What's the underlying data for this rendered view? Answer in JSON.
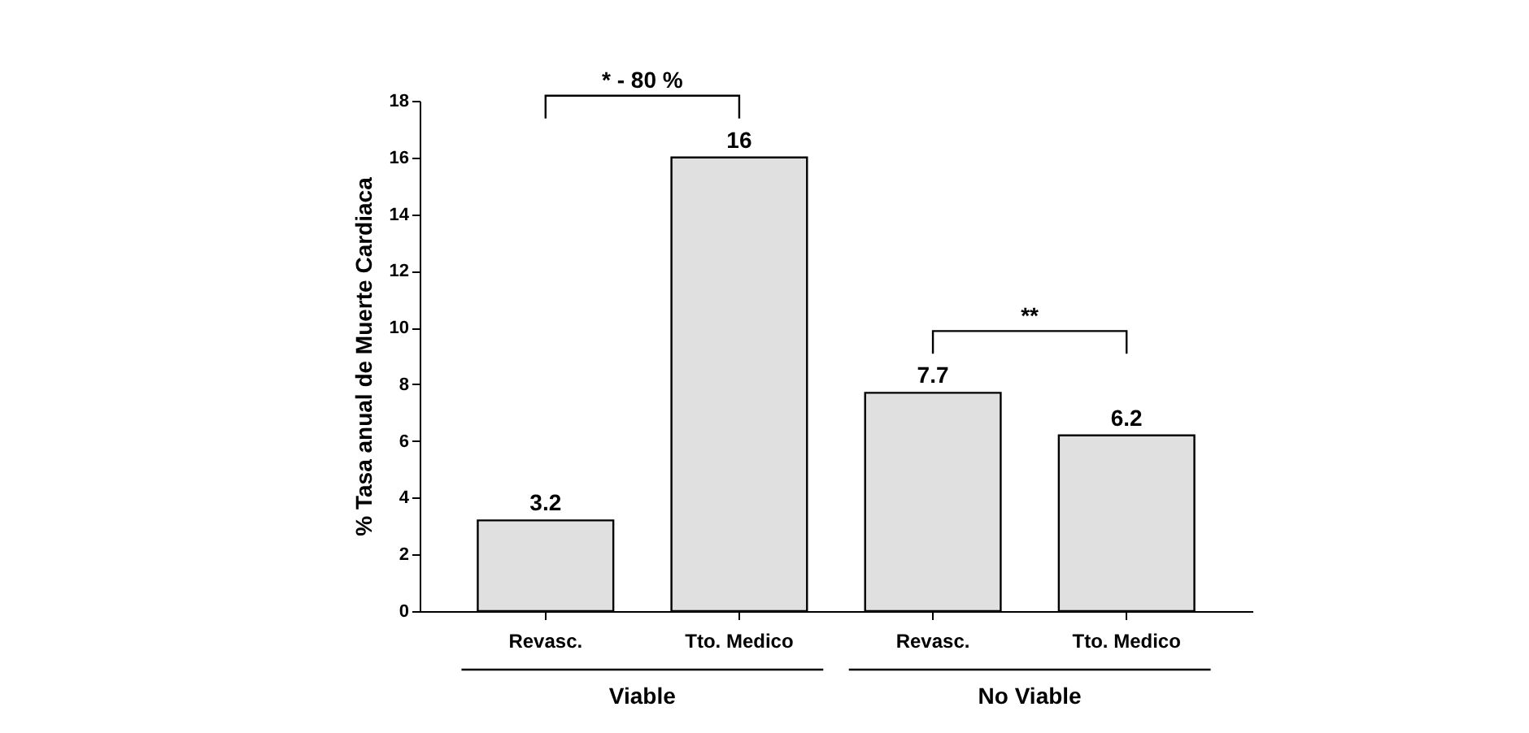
{
  "chart_data": {
    "type": "bar",
    "ylabel": "% Tasa anual de Muerte Cardiaca",
    "categories": [
      "Revasc.",
      "Tto. Medico",
      "Revasc.",
      "Tto. Medico"
    ],
    "values": [
      3.2,
      16,
      7.7,
      6.2
    ],
    "color": "#e0e0e0",
    "ylim": [
      0,
      18
    ],
    "yticks": [
      0,
      2,
      4,
      6,
      8,
      10,
      12,
      14,
      16,
      18
    ],
    "grid": false,
    "data_labels": true,
    "annotations": [
      "* - 80 %",
      "**",
      "Viable",
      "No Viable"
    ]
  }
}
